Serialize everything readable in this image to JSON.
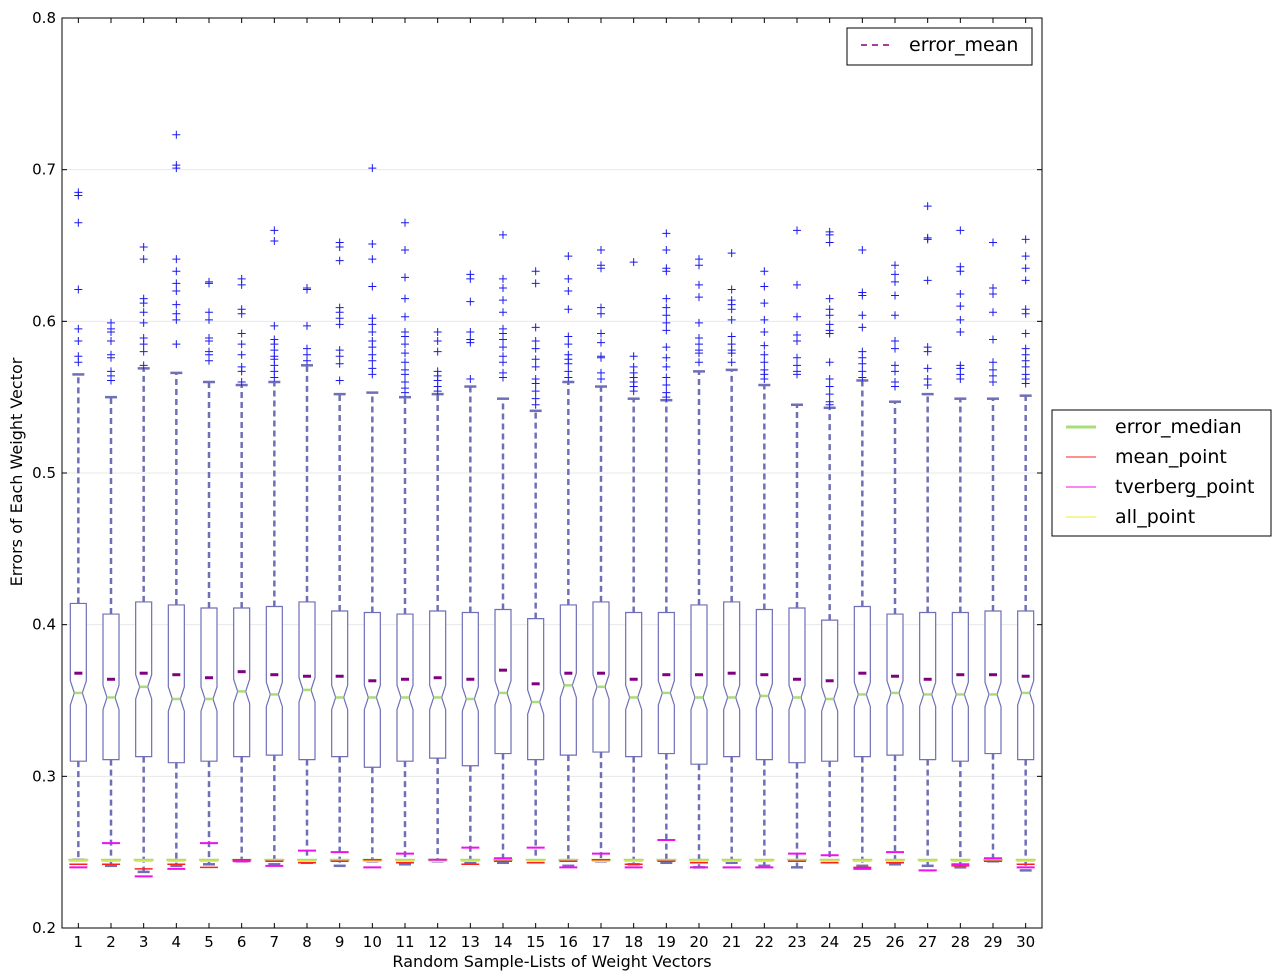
{
  "chart_data": {
    "type": "boxplot",
    "xlabel": "Random Sample-Lists of Weight Vectors",
    "ylabel": "Errors of Each Weight Vector",
    "ylim": [
      0.2,
      0.8
    ],
    "yticks": [
      "0.2",
      "0.3",
      "0.4",
      "0.5",
      "0.6",
      "0.7",
      "0.8"
    ],
    "categories": [
      "1",
      "2",
      "3",
      "4",
      "5",
      "6",
      "7",
      "8",
      "9",
      "10",
      "11",
      "12",
      "13",
      "14",
      "15",
      "16",
      "17",
      "18",
      "19",
      "20",
      "21",
      "22",
      "23",
      "24",
      "25",
      "26",
      "27",
      "28",
      "29",
      "30"
    ],
    "grid": "horizontal",
    "legend_inside": {
      "placement": "top-right",
      "entries": [
        "error_mean"
      ]
    },
    "legend_outside": {
      "placement": "right",
      "entries": [
        "error_median",
        "mean_point",
        "tverberg_point",
        "all_point"
      ]
    },
    "colors": {
      "box": "#6f6fb7",
      "whisker": "#6f6fb7",
      "flier": "#1a1aee",
      "error_mean": "#800080",
      "error_median": "#a9dd7a",
      "mean_point": "#ff2020",
      "tverberg_point": "#ee10ee",
      "all_point": "#eeee30"
    },
    "boxes": {
      "q1": [
        0.31,
        0.311,
        0.313,
        0.309,
        0.31,
        0.313,
        0.314,
        0.311,
        0.313,
        0.306,
        0.31,
        0.312,
        0.307,
        0.315,
        0.311,
        0.314,
        0.316,
        0.313,
        0.315,
        0.308,
        0.313,
        0.311,
        0.309,
        0.31,
        0.313,
        0.314,
        0.311,
        0.31,
        0.315,
        0.311
      ],
      "median": [
        0.355,
        0.352,
        0.359,
        0.351,
        0.351,
        0.356,
        0.354,
        0.357,
        0.352,
        0.352,
        0.352,
        0.352,
        0.351,
        0.355,
        0.349,
        0.36,
        0.359,
        0.352,
        0.355,
        0.352,
        0.352,
        0.353,
        0.352,
        0.351,
        0.354,
        0.355,
        0.354,
        0.354,
        0.354,
        0.355
      ],
      "q3": [
        0.414,
        0.407,
        0.415,
        0.413,
        0.411,
        0.411,
        0.412,
        0.415,
        0.409,
        0.408,
        0.407,
        0.409,
        0.408,
        0.41,
        0.404,
        0.413,
        0.415,
        0.408,
        0.408,
        0.413,
        0.415,
        0.41,
        0.411,
        0.403,
        0.412,
        0.407,
        0.408,
        0.408,
        0.409,
        0.409
      ],
      "whisker_low": [
        0.245,
        0.241,
        0.237,
        0.241,
        0.242,
        0.244,
        0.242,
        0.243,
        0.241,
        0.244,
        0.242,
        0.244,
        0.243,
        0.243,
        0.244,
        0.241,
        0.244,
        0.242,
        0.243,
        0.24,
        0.243,
        0.241,
        0.24,
        0.244,
        0.241,
        0.242,
        0.241,
        0.24,
        0.244,
        0.238
      ],
      "whisker_high": [
        0.565,
        0.55,
        0.569,
        0.566,
        0.56,
        0.558,
        0.56,
        0.571,
        0.552,
        0.553,
        0.55,
        0.552,
        0.557,
        0.549,
        0.541,
        0.56,
        0.557,
        0.549,
        0.548,
        0.567,
        0.568,
        0.558,
        0.545,
        0.543,
        0.561,
        0.547,
        0.552,
        0.549,
        0.549,
        0.551
      ],
      "mean": [
        0.368,
        0.364,
        0.368,
        0.367,
        0.365,
        0.369,
        0.367,
        0.366,
        0.366,
        0.363,
        0.364,
        0.365,
        0.364,
        0.37,
        0.361,
        0.368,
        0.368,
        0.364,
        0.367,
        0.367,
        0.368,
        0.367,
        0.364,
        0.363,
        0.368,
        0.366,
        0.364,
        0.367,
        0.367,
        0.366
      ]
    },
    "points": {
      "error_median": [
        0.245,
        0.245,
        0.245,
        0.245,
        0.245,
        0.245,
        0.245,
        0.245,
        0.245,
        0.245,
        0.245,
        0.245,
        0.245,
        0.245,
        0.245,
        0.245,
        0.245,
        0.245,
        0.245,
        0.245,
        0.245,
        0.245,
        0.245,
        0.245,
        0.245,
        0.245,
        0.245,
        0.245,
        0.245,
        0.245
      ],
      "mean_point": [
        0.242,
        0.242,
        0.239,
        0.242,
        0.24,
        0.245,
        0.244,
        0.243,
        0.244,
        0.245,
        0.243,
        0.245,
        0.242,
        0.244,
        0.243,
        0.244,
        0.245,
        0.242,
        0.244,
        0.243,
        0.24,
        0.24,
        0.244,
        0.243,
        0.24,
        0.243,
        0.238,
        0.241,
        0.244,
        0.242
      ],
      "tverberg_point": [
        0.24,
        0.256,
        0.234,
        0.239,
        0.256,
        0.244,
        0.241,
        0.251,
        0.25,
        0.24,
        0.249,
        0.245,
        0.253,
        0.246,
        0.253,
        0.24,
        0.249,
        0.24,
        0.258,
        0.24,
        0.24,
        0.24,
        0.249,
        0.248,
        0.239,
        0.25,
        0.238,
        0.242,
        0.246,
        0.24
      ],
      "all_point": [
        0.244,
        0.244,
        0.244,
        0.244,
        0.244,
        0.244,
        0.244,
        0.244,
        0.244,
        0.244,
        0.244,
        0.244,
        0.244,
        0.244,
        0.244,
        0.244,
        0.244,
        0.244,
        0.244,
        0.244,
        0.244,
        0.244,
        0.244,
        0.244,
        0.244,
        0.244,
        0.244,
        0.244,
        0.244,
        0.244
      ]
    },
    "outliers": [
      [
        0.685,
        0.683,
        0.665,
        0.621,
        0.595,
        0.587,
        0.577,
        0.573
      ],
      [
        0.599,
        0.595,
        0.593,
        0.587,
        0.578,
        0.576,
        0.567,
        0.564,
        0.561
      ],
      [
        0.649,
        0.641,
        0.615,
        0.612,
        0.606,
        0.599,
        0.589,
        0.585,
        0.58,
        0.571
      ],
      [
        0.723,
        0.703,
        0.701,
        0.641,
        0.633,
        0.625,
        0.62,
        0.611,
        0.605,
        0.601,
        0.585
      ],
      [
        0.626,
        0.625,
        0.606,
        0.601,
        0.589,
        0.587,
        0.58,
        0.578,
        0.574
      ],
      [
        0.628,
        0.624,
        0.608,
        0.605,
        0.592,
        0.585,
        0.578,
        0.57,
        0.567,
        0.56
      ],
      [
        0.66,
        0.653,
        0.597,
        0.588,
        0.585,
        0.581,
        0.577,
        0.575,
        0.571,
        0.567,
        0.563
      ],
      [
        0.622,
        0.621,
        0.597,
        0.582,
        0.578,
        0.574
      ],
      [
        0.652,
        0.649,
        0.64,
        0.609,
        0.606,
        0.602,
        0.598,
        0.581,
        0.577,
        0.572,
        0.561
      ],
      [
        0.701,
        0.651,
        0.641,
        0.623,
        0.602,
        0.598,
        0.593,
        0.587,
        0.583,
        0.578,
        0.574,
        0.569,
        0.565
      ],
      [
        0.665,
        0.647,
        0.629,
        0.615,
        0.603,
        0.593,
        0.59,
        0.585,
        0.579,
        0.573,
        0.568,
        0.565,
        0.56,
        0.556,
        0.553
      ],
      [
        0.593,
        0.587,
        0.58,
        0.567,
        0.564,
        0.561,
        0.557,
        0.554
      ],
      [
        0.631,
        0.628,
        0.613,
        0.593,
        0.588,
        0.586,
        0.562
      ],
      [
        0.657,
        0.628,
        0.622,
        0.614,
        0.606,
        0.595,
        0.592,
        0.588,
        0.583,
        0.577,
        0.573,
        0.566,
        0.563
      ],
      [
        0.633,
        0.625,
        0.596,
        0.587,
        0.582,
        0.575,
        0.57,
        0.562,
        0.559,
        0.554,
        0.549,
        0.545
      ],
      [
        0.643,
        0.628,
        0.62,
        0.608,
        0.59,
        0.585,
        0.578,
        0.575,
        0.572,
        0.567,
        0.563
      ],
      [
        0.647,
        0.637,
        0.635,
        0.609,
        0.605,
        0.592,
        0.586,
        0.577,
        0.576,
        0.566,
        0.562
      ],
      [
        0.639,
        0.577,
        0.57,
        0.566,
        0.563,
        0.56,
        0.557,
        0.554
      ],
      [
        0.658,
        0.647,
        0.635,
        0.633,
        0.615,
        0.609,
        0.604,
        0.599,
        0.594,
        0.583,
        0.576,
        0.57,
        0.563,
        0.558,
        0.553,
        0.55
      ],
      [
        0.641,
        0.637,
        0.624,
        0.616,
        0.599,
        0.589,
        0.585,
        0.581,
        0.579,
        0.573
      ],
      [
        0.645,
        0.621,
        0.614,
        0.611,
        0.608,
        0.601,
        0.59,
        0.585,
        0.581,
        0.579,
        0.573
      ],
      [
        0.633,
        0.623,
        0.612,
        0.601,
        0.593,
        0.584,
        0.578,
        0.573,
        0.568,
        0.565,
        0.562
      ],
      [
        0.66,
        0.624,
        0.603,
        0.591,
        0.587,
        0.576,
        0.571,
        0.567,
        0.565
      ],
      [
        0.659,
        0.657,
        0.652,
        0.615,
        0.608,
        0.604,
        0.598,
        0.594,
        0.592,
        0.573,
        0.562,
        0.557,
        0.552,
        0.547,
        0.545
      ],
      [
        0.647,
        0.619,
        0.617,
        0.604,
        0.596,
        0.58,
        0.576,
        0.572,
        0.567,
        0.563
      ],
      [
        0.637,
        0.631,
        0.626,
        0.617,
        0.604,
        0.587,
        0.582,
        0.571,
        0.567,
        0.56,
        0.557
      ],
      [
        0.676,
        0.655,
        0.654,
        0.627,
        0.583,
        0.58,
        0.569,
        0.562,
        0.558
      ],
      [
        0.66,
        0.636,
        0.633,
        0.618,
        0.61,
        0.601,
        0.593,
        0.571,
        0.569,
        0.565,
        0.562
      ],
      [
        0.652,
        0.622,
        0.618,
        0.606,
        0.588,
        0.573,
        0.568,
        0.564,
        0.56
      ],
      [
        0.654,
        0.643,
        0.635,
        0.627,
        0.608,
        0.605,
        0.592,
        0.582,
        0.578,
        0.574,
        0.57,
        0.565,
        0.562,
        0.559
      ]
    ]
  }
}
